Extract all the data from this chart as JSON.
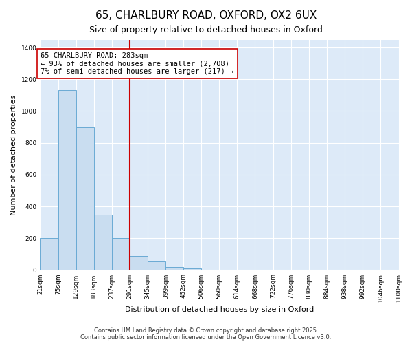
{
  "title": "65, CHARLBURY ROAD, OXFORD, OX2 6UX",
  "subtitle": "Size of property relative to detached houses in Oxford",
  "xlabel": "Distribution of detached houses by size in Oxford",
  "ylabel": "Number of detached properties",
  "bar_color": "#c9ddf0",
  "bar_edgecolor": "#6aaad4",
  "background_color": "#ddeaf8",
  "grid_color": "#ffffff",
  "bins": [
    21,
    75,
    129,
    183,
    237,
    291,
    345,
    399,
    452,
    506,
    560,
    614,
    668,
    722,
    776,
    830,
    884,
    938,
    992,
    1046,
    1100
  ],
  "bin_labels": [
    "21sqm",
    "75sqm",
    "129sqm",
    "183sqm",
    "237sqm",
    "291sqm",
    "345sqm",
    "399sqm",
    "452sqm",
    "506sqm",
    "560sqm",
    "614sqm",
    "668sqm",
    "722sqm",
    "776sqm",
    "830sqm",
    "884sqm",
    "938sqm",
    "992sqm",
    "1046sqm",
    "1100sqm"
  ],
  "counts": [
    200,
    1130,
    900,
    350,
    200,
    90,
    55,
    20,
    10,
    0,
    0,
    0,
    0,
    0,
    0,
    0,
    0,
    0,
    0,
    0
  ],
  "vline_x": 291,
  "vline_color": "#cc0000",
  "annotation_lines": [
    "65 CHARLBURY ROAD: 283sqm",
    "← 93% of detached houses are smaller (2,708)",
    "7% of semi-detached houses are larger (217) →"
  ],
  "ylim": [
    0,
    1450
  ],
  "yticks": [
    0,
    200,
    400,
    600,
    800,
    1000,
    1200,
    1400
  ],
  "footnote1": "Contains HM Land Registry data © Crown copyright and database right 2025.",
  "footnote2": "Contains public sector information licensed under the Open Government Licence v3.0.",
  "title_fontsize": 11,
  "subtitle_fontsize": 9,
  "label_fontsize": 8,
  "tick_fontsize": 6.5,
  "annotation_fontsize": 7.5,
  "footnote_fontsize": 6
}
